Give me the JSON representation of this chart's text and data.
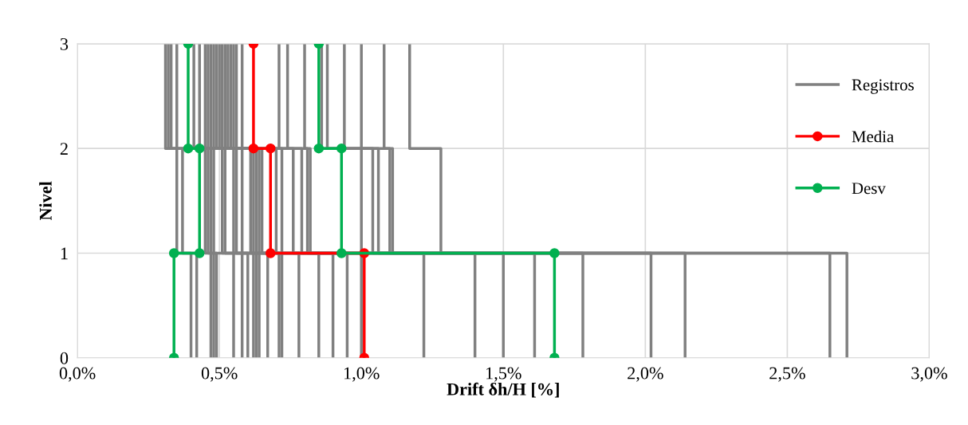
{
  "chart_data": {
    "type": "line",
    "xlabel": "Drift δh/H [%]",
    "ylabel": "Nivel",
    "xlim": [
      0,
      3
    ],
    "ylim": [
      0,
      3
    ],
    "xticks": [
      {
        "value": 0,
        "label": "0,0%"
      },
      {
        "value": 0.5,
        "label": "0,5%"
      },
      {
        "value": 1,
        "label": "1,0%"
      },
      {
        "value": 1.5,
        "label": "1,5%"
      },
      {
        "value": 2,
        "label": "2,0%"
      },
      {
        "value": 2.5,
        "label": "2,5%"
      },
      {
        "value": 3,
        "label": "3,0%"
      }
    ],
    "yticks": [
      0,
      1,
      2,
      3
    ],
    "grid": true,
    "legend": "right",
    "marker": "none",
    "series": [
      {
        "name": "Registros",
        "color": "#808080",
        "x": [
          0.4,
          0.4,
          0.35,
          0.35,
          0.31,
          0.31
        ],
        "values": [
          0,
          1,
          1,
          2,
          2,
          3
        ]
      },
      {
        "color": "#808080",
        "x": [
          0.42,
          0.42,
          0.37,
          0.37,
          0.32,
          0.32
        ],
        "values": [
          0,
          1,
          1,
          2,
          2,
          3
        ]
      },
      {
        "color": "#808080",
        "x": [
          0.47,
          0.47,
          0.45,
          0.45,
          0.33,
          0.33
        ],
        "values": [
          0,
          1,
          1,
          2,
          2,
          3
        ]
      },
      {
        "color": "#808080",
        "x": [
          0.48,
          0.48,
          0.46,
          0.46,
          0.35,
          0.35
        ],
        "values": [
          0,
          1,
          1,
          2,
          2,
          3
        ]
      },
      {
        "color": "#808080",
        "x": [
          0.49,
          0.49,
          0.47,
          0.47,
          0.41,
          0.41
        ],
        "values": [
          0,
          1,
          1,
          2,
          2,
          3
        ]
      },
      {
        "color": "#808080",
        "x": [
          0.55,
          0.55,
          0.48,
          0.48,
          0.43,
          0.43
        ],
        "values": [
          0,
          1,
          1,
          2,
          2,
          3
        ]
      },
      {
        "color": "#808080",
        "x": [
          0.58,
          0.58,
          0.51,
          0.51,
          0.45,
          0.45
        ],
        "values": [
          0,
          1,
          1,
          2,
          2,
          3
        ]
      },
      {
        "color": "#808080",
        "x": [
          0.6,
          0.6,
          0.52,
          0.52,
          0.46,
          0.46
        ],
        "values": [
          0,
          1,
          1,
          2,
          2,
          3
        ]
      },
      {
        "color": "#808080",
        "x": [
          0.62,
          0.62,
          0.55,
          0.55,
          0.47,
          0.47
        ],
        "values": [
          0,
          1,
          1,
          2,
          2,
          3
        ]
      },
      {
        "color": "#808080",
        "x": [
          0.63,
          0.63,
          0.56,
          0.56,
          0.48,
          0.48
        ],
        "values": [
          0,
          1,
          1,
          2,
          2,
          3
        ]
      },
      {
        "color": "#808080",
        "x": [
          0.64,
          0.64,
          0.58,
          0.58,
          0.49,
          0.49
        ],
        "values": [
          0,
          1,
          1,
          2,
          2,
          3
        ]
      },
      {
        "color": "#808080",
        "x": [
          0.67,
          0.67,
          0.61,
          0.61,
          0.5,
          0.5
        ],
        "values": [
          0,
          1,
          1,
          2,
          2,
          3
        ]
      },
      {
        "color": "#808080",
        "x": [
          0.71,
          0.71,
          0.62,
          0.62,
          0.51,
          0.51
        ],
        "values": [
          0,
          1,
          1,
          2,
          2,
          3
        ]
      },
      {
        "color": "#808080",
        "x": [
          0.72,
          0.72,
          0.63,
          0.63,
          0.52,
          0.52
        ],
        "values": [
          0,
          1,
          1,
          2,
          2,
          3
        ]
      },
      {
        "color": "#808080",
        "x": [
          0.78,
          0.78,
          0.64,
          0.64,
          0.53,
          0.53
        ],
        "values": [
          0,
          1,
          1,
          2,
          2,
          3
        ]
      },
      {
        "color": "#808080",
        "x": [
          0.85,
          0.85,
          0.65,
          0.65,
          0.54,
          0.54
        ],
        "values": [
          0,
          1,
          1,
          2,
          2,
          3
        ]
      },
      {
        "color": "#808080",
        "x": [
          0.9,
          0.9,
          0.7,
          0.7,
          0.55,
          0.55
        ],
        "values": [
          0,
          1,
          1,
          2,
          2,
          3
        ]
      },
      {
        "color": "#808080",
        "x": [
          0.95,
          0.95,
          0.72,
          0.72,
          0.56,
          0.56
        ],
        "values": [
          0,
          1,
          1,
          2,
          2,
          3
        ]
      },
      {
        "color": "#808080",
        "x": [
          1.0,
          1.0,
          0.76,
          0.76,
          0.58,
          0.58
        ],
        "values": [
          0,
          1,
          1,
          2,
          2,
          3
        ]
      },
      {
        "color": "#808080",
        "x": [
          1.22,
          1.22,
          0.79,
          0.79,
          0.71,
          0.71
        ],
        "values": [
          0,
          1,
          1,
          2,
          2,
          3
        ]
      },
      {
        "color": "#808080",
        "x": [
          1.4,
          1.4,
          0.81,
          0.81,
          0.74,
          0.74
        ],
        "values": [
          0,
          1,
          1,
          2,
          2,
          3
        ]
      },
      {
        "color": "#808080",
        "x": [
          1.5,
          1.5,
          0.82,
          0.82,
          0.8,
          0.8
        ],
        "values": [
          0,
          1,
          1,
          2,
          2,
          3
        ]
      },
      {
        "color": "#808080",
        "x": [
          1.61,
          1.61,
          1.0,
          1.0,
          0.86,
          0.86
        ],
        "values": [
          0,
          1,
          1,
          2,
          2,
          3
        ]
      },
      {
        "color": "#808080",
        "x": [
          1.78,
          1.78,
          1.04,
          1.04,
          0.88,
          0.88
        ],
        "values": [
          0,
          1,
          1,
          2,
          2,
          3
        ]
      },
      {
        "color": "#808080",
        "x": [
          2.02,
          2.02,
          1.06,
          1.06,
          0.94,
          0.94
        ],
        "values": [
          0,
          1,
          1,
          2,
          2,
          3
        ]
      },
      {
        "color": "#808080",
        "x": [
          2.14,
          2.14,
          1.1,
          1.1,
          1.0,
          1.0
        ],
        "values": [
          0,
          1,
          1,
          2,
          2,
          3
        ]
      },
      {
        "color": "#808080",
        "x": [
          2.65,
          2.65,
          1.11,
          1.11,
          1.08,
          1.08
        ],
        "values": [
          0,
          1,
          1,
          2,
          2,
          3
        ]
      },
      {
        "color": "#808080",
        "x": [
          2.71,
          2.71,
          1.28,
          1.28,
          1.17,
          1.17
        ],
        "values": [
          0,
          1,
          1,
          2,
          2,
          3
        ]
      },
      {
        "name": "Media",
        "color": "#ff0000",
        "marker": "circle",
        "x": [
          1.01,
          1.01,
          0.68,
          0.68,
          0.62,
          0.62
        ],
        "values": [
          0,
          1,
          1,
          2,
          2,
          3
        ]
      },
      {
        "name": "Desv",
        "color": "#00b050",
        "marker": "circle",
        "x": [
          0.34,
          0.34,
          0.43,
          0.43,
          0.39,
          0.39
        ],
        "values": [
          0,
          1,
          1,
          2,
          2,
          3
        ]
      },
      {
        "color": "#00b050",
        "marker": "circle",
        "x": [
          1.68,
          1.68,
          0.93,
          0.93,
          0.85,
          0.85
        ],
        "values": [
          0,
          1,
          1,
          2,
          2,
          3
        ]
      }
    ]
  }
}
